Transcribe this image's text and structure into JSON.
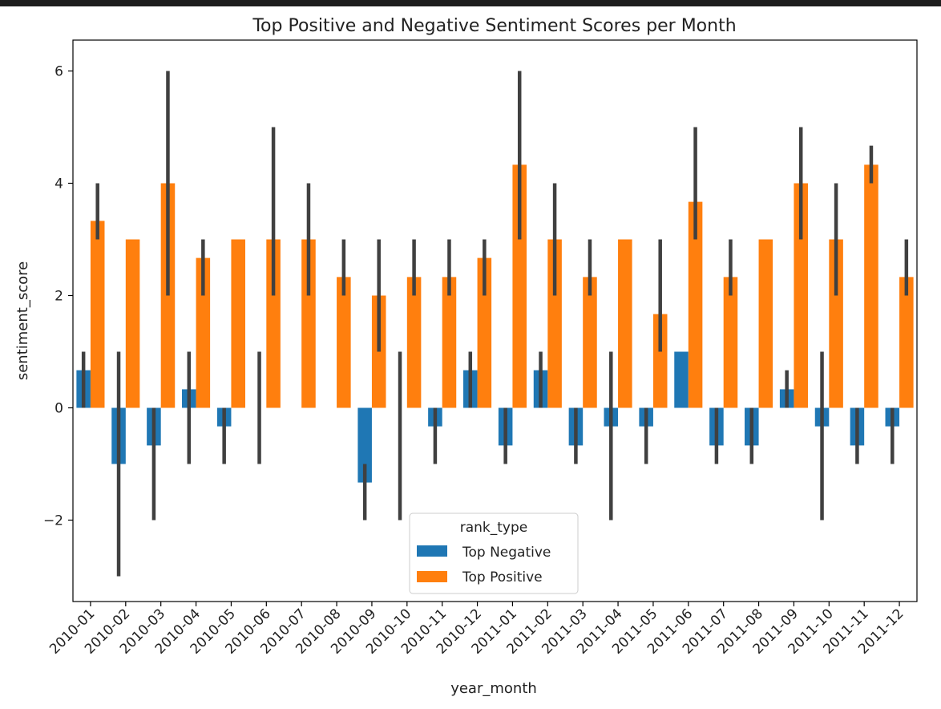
{
  "chart_data": {
    "type": "bar",
    "title": "Top Positive and Negative Sentiment Scores per Month",
    "xlabel": "year_month",
    "ylabel": "sentiment_score",
    "ylim": [
      -3.45,
      6.55
    ],
    "yticks": [
      -2,
      0,
      2,
      4,
      6
    ],
    "ytick_labels": [
      "−2",
      "0",
      "2",
      "4",
      "6"
    ],
    "grid": false,
    "legend": {
      "title": "rank_type",
      "placement": "lower center"
    },
    "categories": [
      "2010-01",
      "2010-02",
      "2010-03",
      "2010-04",
      "2010-05",
      "2010-06",
      "2010-07",
      "2010-08",
      "2010-09",
      "2010-10",
      "2010-11",
      "2010-12",
      "2011-01",
      "2011-02",
      "2011-03",
      "2011-04",
      "2011-05",
      "2011-06",
      "2011-07",
      "2011-08",
      "2011-09",
      "2011-10",
      "2011-11",
      "2011-12"
    ],
    "series": [
      {
        "name": "Top Negative",
        "color": "#1f77b4",
        "values": [
          0.67,
          -1.0,
          -0.67,
          0.33,
          -0.33,
          0.0,
          0.0,
          0.0,
          -1.33,
          0.0,
          -0.33,
          0.67,
          -0.67,
          0.67,
          -0.67,
          -0.33,
          -0.33,
          1.0,
          -0.67,
          -0.67,
          0.33,
          -0.33,
          -0.67,
          -0.33
        ],
        "ci_low": [
          0.0,
          -3.0,
          -2.0,
          -1.0,
          -1.0,
          -1.0,
          null,
          null,
          -2.0,
          -2.0,
          -1.0,
          0.0,
          -1.0,
          0.0,
          -1.0,
          -2.0,
          -1.0,
          null,
          -1.0,
          -1.0,
          0.0,
          -2.0,
          -1.0,
          -1.0
        ],
        "ci_high": [
          1.0,
          1.0,
          0.0,
          1.0,
          0.0,
          1.0,
          null,
          null,
          -1.0,
          1.0,
          0.0,
          1.0,
          0.0,
          1.0,
          0.0,
          1.0,
          0.0,
          null,
          0.0,
          0.0,
          0.67,
          1.0,
          0.0,
          0.0
        ]
      },
      {
        "name": "Top Positive",
        "color": "#ff7f0e",
        "values": [
          3.33,
          3.0,
          4.0,
          2.67,
          3.0,
          3.0,
          3.0,
          2.33,
          2.0,
          2.33,
          2.33,
          2.67,
          4.33,
          3.0,
          2.33,
          3.0,
          1.67,
          3.67,
          2.33,
          3.0,
          4.0,
          3.0,
          4.33,
          2.33
        ],
        "ci_low": [
          3.0,
          null,
          2.0,
          2.0,
          null,
          2.0,
          2.0,
          2.0,
          1.0,
          2.0,
          2.0,
          2.0,
          3.0,
          2.0,
          2.0,
          null,
          1.0,
          3.0,
          2.0,
          null,
          3.0,
          2.0,
          4.0,
          2.0
        ],
        "ci_high": [
          4.0,
          null,
          6.0,
          3.0,
          null,
          5.0,
          4.0,
          3.0,
          3.0,
          3.0,
          3.0,
          3.0,
          6.0,
          4.0,
          3.0,
          null,
          3.0,
          5.0,
          3.0,
          null,
          5.0,
          4.0,
          4.67,
          3.0
        ]
      }
    ]
  }
}
